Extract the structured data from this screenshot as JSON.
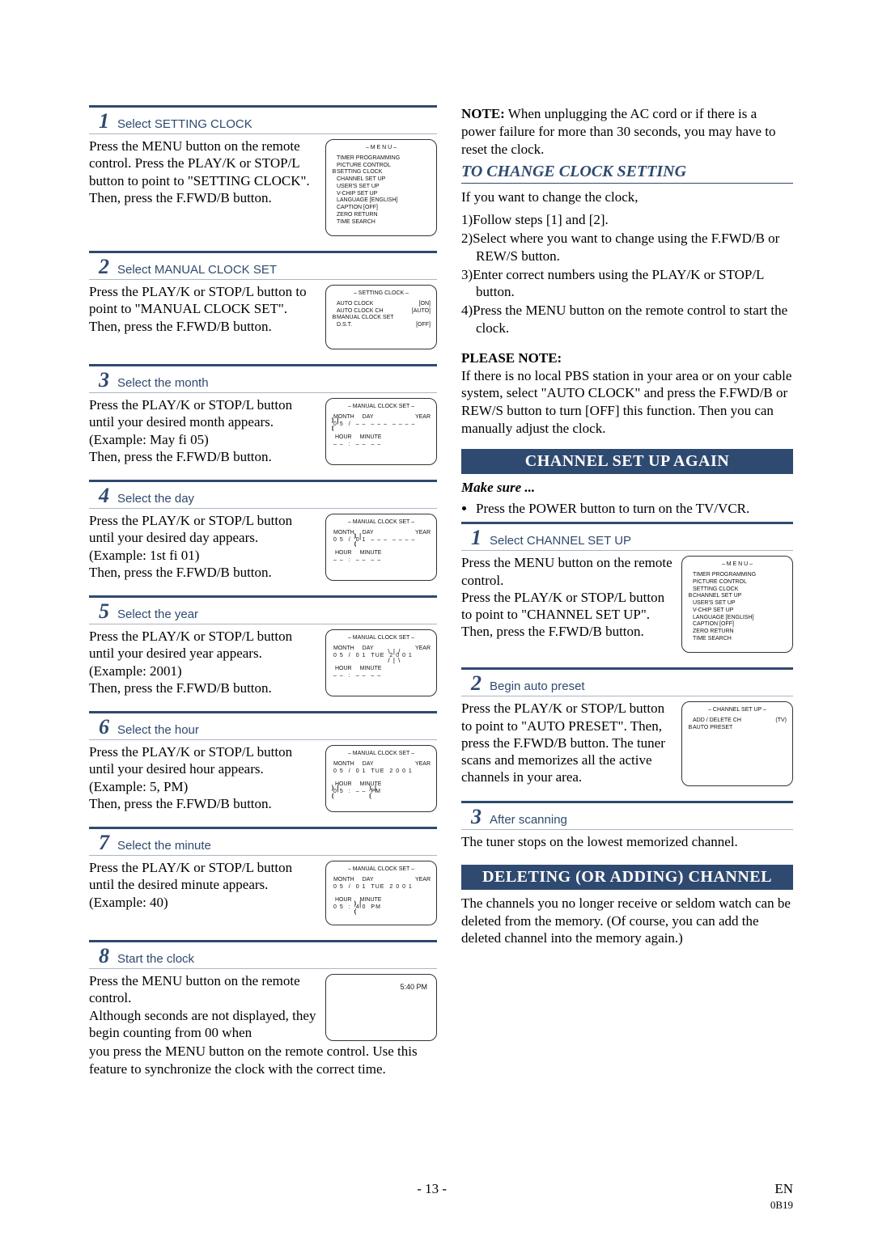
{
  "left": {
    "steps": [
      {
        "num": "1",
        "title": "Select  SETTING CLOCK",
        "text": "Press the MENU button on the remote control. Press the PLAY/K or STOP/L  button to point to \"SETTING CLOCK\".\nThen, press the F.FWD/B  button.",
        "lcd": {
          "title": "– M E N U –",
          "lines": [
            "TIMER PROGRAMMING",
            "PICTURE CONTROL",
            "SETTING CLOCK",
            "CHANNEL SET UP",
            "USER'S SET UP",
            "V-CHIP SET UP",
            "LANGUAGE   [ENGLISH]",
            "CAPTION   [OFF]",
            "ZERO RETURN",
            "TIME SEARCH"
          ],
          "cursor_line": 2
        }
      },
      {
        "num": "2",
        "title": "Select  MANUAL CLOCK SET",
        "text": "Press the PLAY/K or STOP/L  button to point to \"MANUAL CLOCK SET\".\nThen, press the F.FWD/B  button.",
        "lcd": {
          "title": "– SETTING CLOCK –",
          "rows": [
            {
              "l": "AUTO CLOCK",
              "r": "[ON]"
            },
            {
              "l": "AUTO CLOCK CH",
              "r": "[AUTO]"
            },
            {
              "l": "MANUAL CLOCK SET",
              "r": "",
              "cursor": true
            },
            {
              "l": "D.S.T.",
              "r": "[OFF]"
            }
          ]
        }
      },
      {
        "num": "3",
        "title": "Select the month",
        "text": "Press the PLAY/K or STOP/L  button until your desired month appears. (Example: May fi  05)\nThen, press the F.FWD/B  button.",
        "lcd": {
          "mode": "mcs",
          "m": "0 5",
          "m_blink": true,
          "d": "– –",
          "dow": "– – –",
          "y": "– – – –",
          "h": "– –",
          "min": "– –",
          "ampm": "– –"
        }
      },
      {
        "num": "4",
        "title": "Select the day",
        "text": "Press the PLAY/K or STOP/L  button until your desired day appears. (Example: 1st fi  01)\nThen, press the F.FWD/B  button.",
        "lcd": {
          "mode": "mcs",
          "m": "0 5",
          "d": "0 1",
          "d_blink": true,
          "dow": "– – –",
          "y": "– – – –",
          "h": "– –",
          "min": "– –",
          "ampm": "– –"
        }
      },
      {
        "num": "5",
        "title": "Select the year",
        "text": "Press the PLAY/K or STOP/L  button until your desired year appears. (Example: 2001)\nThen, press the F.FWD/B  button.",
        "lcd": {
          "mode": "mcs",
          "m": "0 5",
          "d": "0 1",
          "dow": "TUE",
          "y": "2 0 0 1",
          "y_blink": true,
          "h": "– –",
          "min": "– –",
          "ampm": "– –"
        }
      },
      {
        "num": "6",
        "title": "Select the hour",
        "text": "Press the PLAY/K or STOP/L  button until your desired hour appears. (Example: 5, PM)\nThen, press the F.FWD/B  button.",
        "lcd": {
          "mode": "mcs",
          "m": "0 5",
          "d": "0 1",
          "dow": "TUE",
          "y": "2 0 0 1",
          "h": "0 5",
          "h_blink": true,
          "min": "– –",
          "ampm": "PM",
          "ampm_blink": true
        }
      },
      {
        "num": "7",
        "title": "Select the minute",
        "text": "Press the PLAY/K or STOP/L  button until the desired minute appears. (Example: 40)",
        "lcd": {
          "mode": "mcs",
          "m": "0 5",
          "d": "0 1",
          "dow": "TUE",
          "y": "2 0 0 1",
          "h": "0 5",
          "min": "4 0",
          "min_blink": true,
          "ampm": "PM"
        }
      },
      {
        "num": "8",
        "title": "Start the clock",
        "text": "Press the MENU button on the remote control.\nAlthough seconds are not displayed, they begin counting from 00 when",
        "lcd": {
          "mode": "time",
          "time": "5:40 PM"
        },
        "after": "you press the MENU button on the remote control. Use this feature to synchronize the clock with the correct time."
      }
    ]
  },
  "right": {
    "note_label": "NOTE:",
    "note_text": "When unplugging the AC cord or if there is a power failure for more than 30 seconds, you may have to reset the clock.",
    "change_title": "TO CHANGE CLOCK SETTING",
    "change_intro": "If you want to change the clock,",
    "change_list": [
      "1)Follow steps [1] and [2].",
      "2)Select where you want to change using the F.FWD/B  or REW/S  button.",
      "3)Enter correct numbers using the PLAY/K  or STOP/L  button.",
      "4)Press the MENU button on the remote control to start the clock."
    ],
    "please_label": "PLEASE NOTE:",
    "please_text": "If there is no local PBS station in your area or on your cable system, select \"AUTO CLOCK\" and press the F.FWD/B  or REW/S   button to turn [OFF] this function. Then you can manually adjust the clock.",
    "band1": "CHANNEL SET UP AGAIN",
    "makesure_label": "Make sure ...",
    "makesure_item": "Press the POWER button to turn on the TV/VCR.",
    "ch_steps": [
      {
        "num": "1",
        "title": "Select  CHANNEL SET UP",
        "text": "Press the MENU button on the remote control.\nPress the PLAY/K or STOP/L  button to point to \"CHANNEL SET UP\".\nThen, press the F.FWD/B  button.",
        "lcd": {
          "title": "– M E N U –",
          "lines": [
            "TIMER PROGRAMMING",
            "PICTURE CONTROL",
            "SETTING CLOCK",
            "CHANNEL SET UP",
            "USER'S SET UP",
            "V-CHIP SET UP",
            "LANGUAGE   [ENGLISH]",
            "CAPTION   [OFF]",
            "ZERO RETURN",
            "TIME SEARCH"
          ],
          "cursor_line": 3
        }
      },
      {
        "num": "2",
        "title": "Begin auto preset",
        "text": "Press the PLAY/K or STOP/L  button to point to \"AUTO PRESET\". Then, press the F.FWD/B  button. The tuner scans and memorizes all the active channels in your area.",
        "lcd": {
          "title": "– CHANNEL SET UP –",
          "rows": [
            {
              "l": "ADD / DELETE CH",
              "r": "(TV)"
            },
            {
              "l": "AUTO PRESET",
              "r": "",
              "cursor": true
            }
          ]
        }
      },
      {
        "num": "3",
        "title": "After scanning",
        "text": "The tuner stops on the lowest memorized channel."
      }
    ],
    "band2": "DELETING (OR ADDING) CHANNEL",
    "band2_text": "The channels you no longer receive or seldom watch can be deleted from the memory. (Of course, you can add the deleted channel into the memory again.)"
  },
  "footer": {
    "page": "- 13 -",
    "lang": "EN",
    "code": "0B19"
  }
}
